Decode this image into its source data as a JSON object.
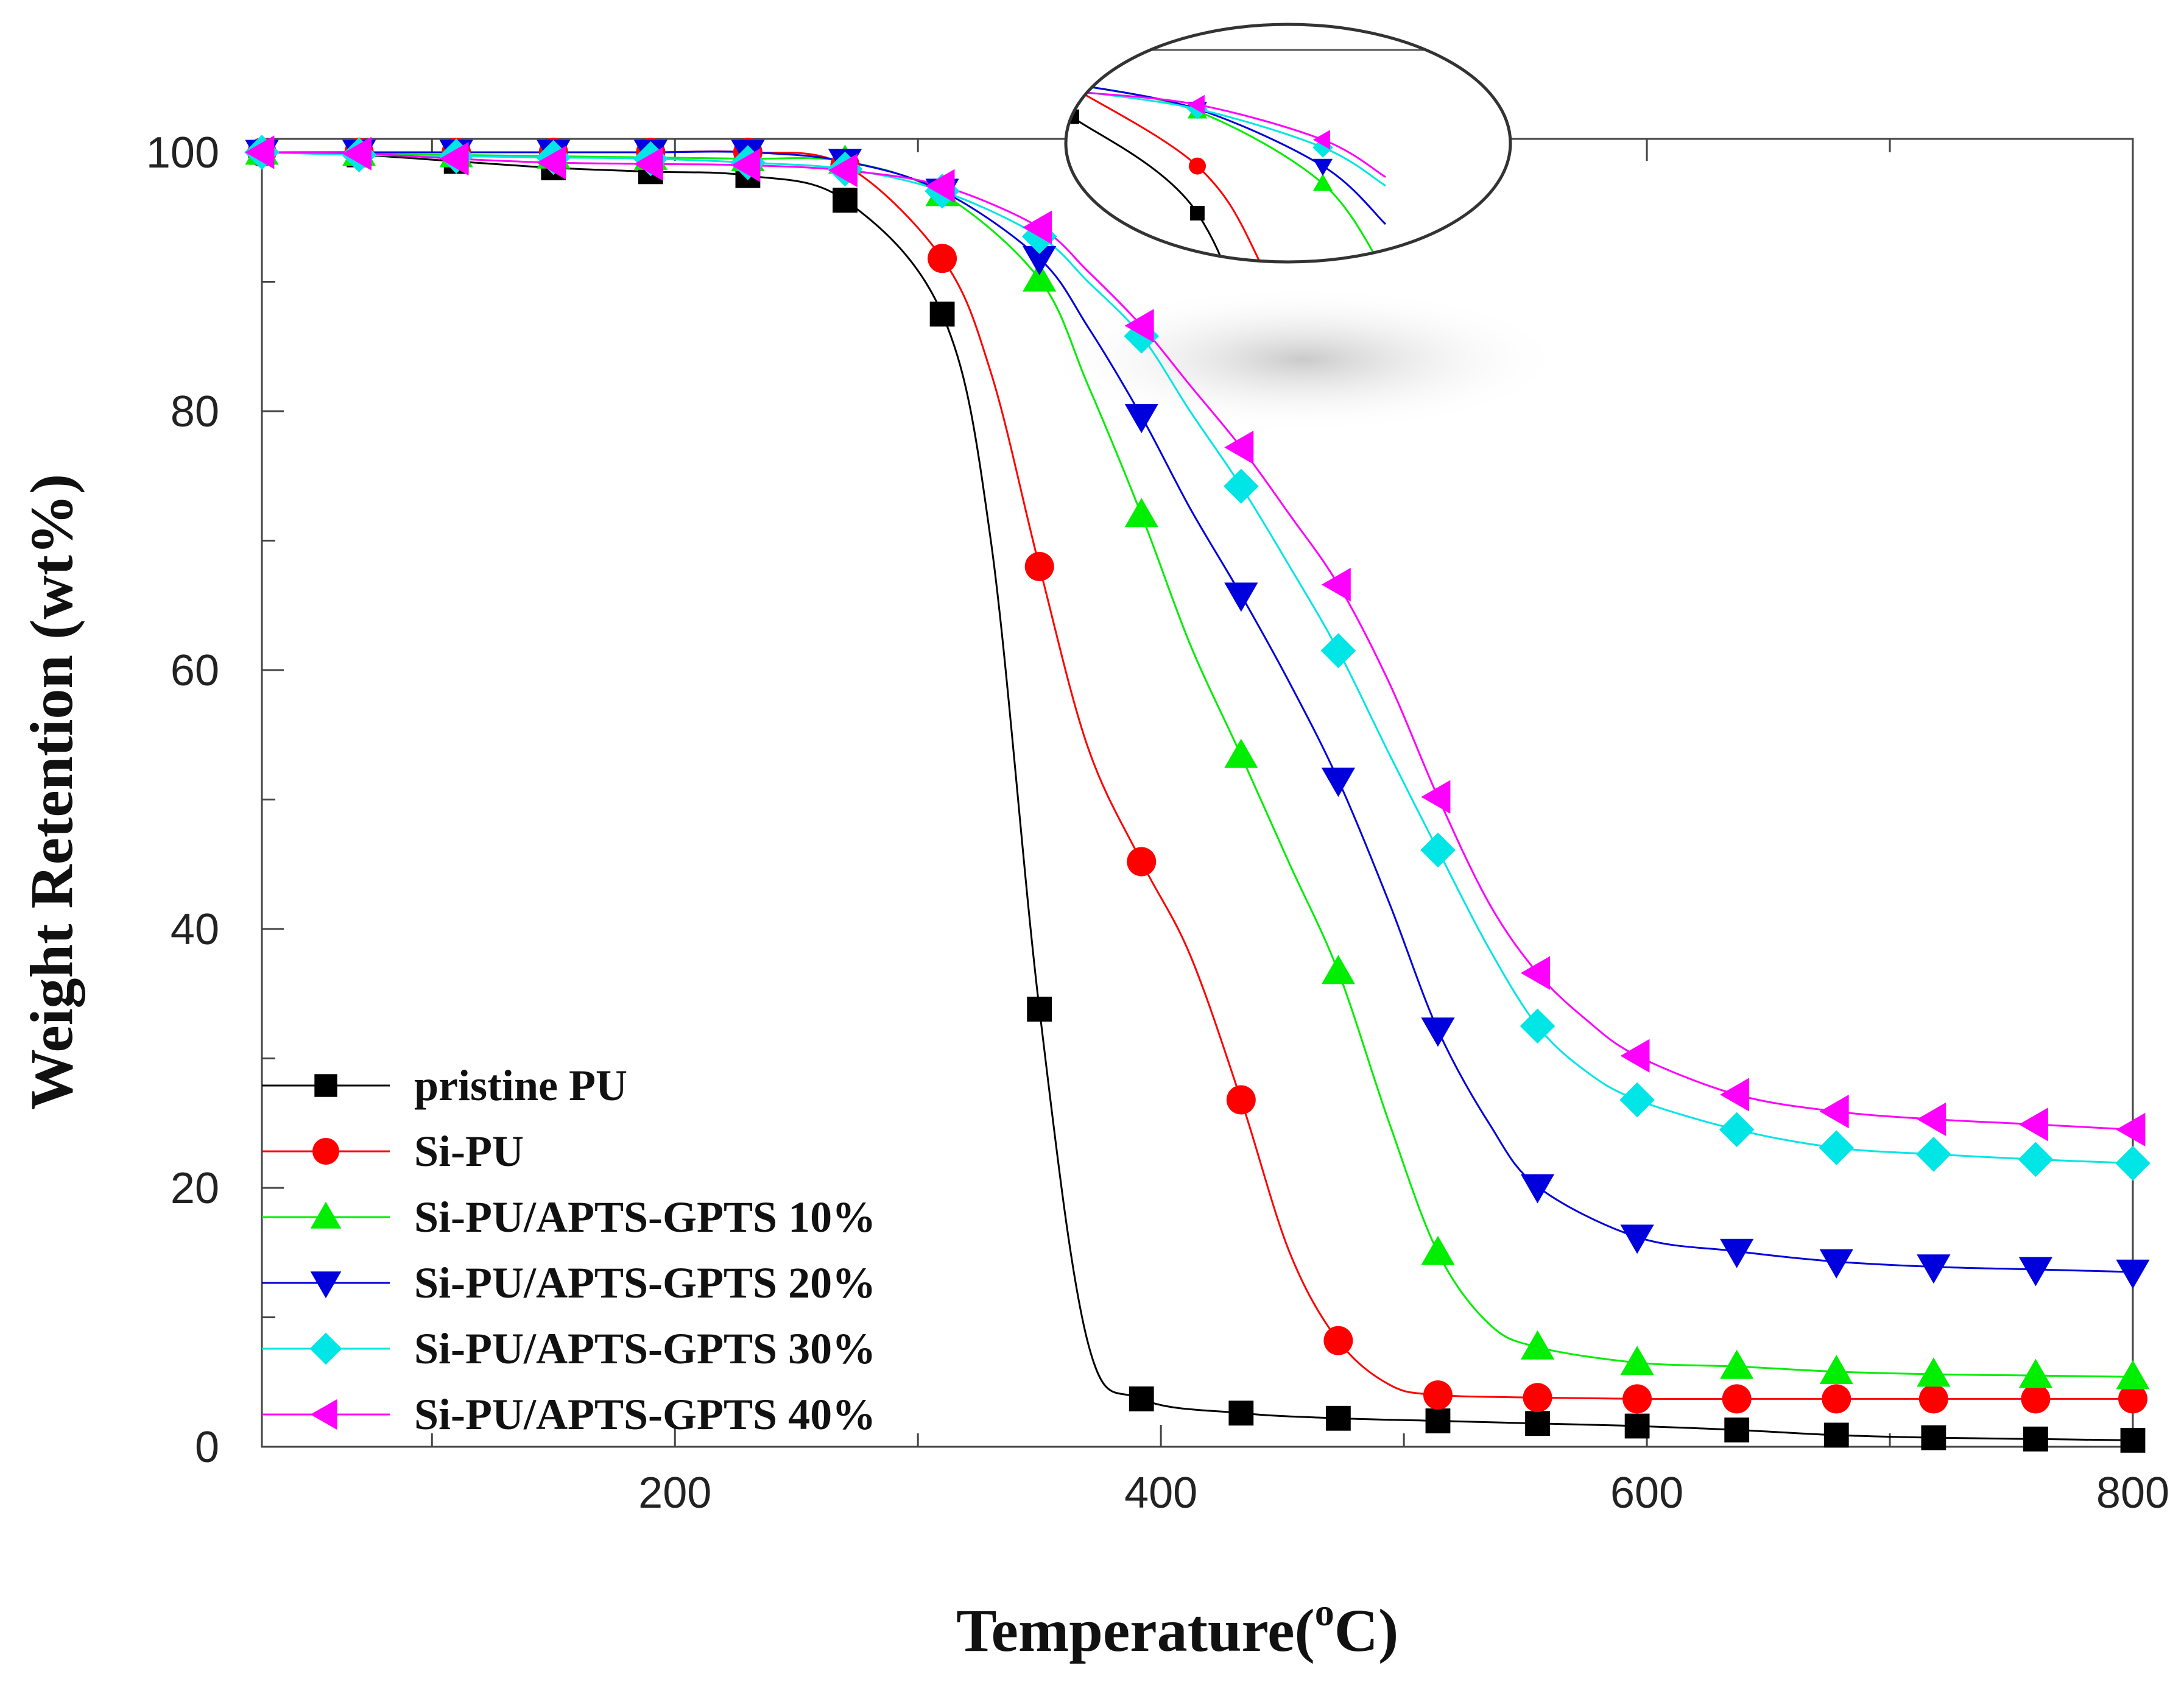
{
  "chart_data": {
    "type": "line",
    "title": "",
    "xlabel": "Temperature(°C)",
    "xlabel_main": "Temperature(",
    "xlabel_sup": "o",
    "xlabel_end": "C)",
    "ylabel": "Weight Retention (wt%)",
    "xlim": [
      30,
      800
    ],
    "ylim": [
      0,
      100
    ],
    "x_ticks": [
      200,
      400,
      600,
      800
    ],
    "x_tick_labels": [
      "200",
      "400",
      "600",
      "800"
    ],
    "y_ticks": [
      0,
      20,
      40,
      60,
      80,
      100
    ],
    "y_tick_labels": [
      "0",
      "20",
      "40",
      "60",
      "80",
      "100"
    ],
    "legend_position": "bottom-left",
    "series": [
      {
        "name": "pristine PU",
        "color": "#000000",
        "marker": "square",
        "x": [
          30,
          70,
          110,
          150,
          190,
          230,
          270,
          310,
          330,
          350,
          370,
          392,
          433,
          473,
          514,
          555,
          596,
          637,
          678,
          718,
          760,
          800
        ],
        "values": [
          100,
          99.8,
          99.3,
          98.8,
          98.5,
          98.2,
          96.3,
          87.5,
          70,
          33.8,
          8,
          3.7,
          2.6,
          2.2,
          2.0,
          1.8,
          1.6,
          1.3,
          0.9,
          0.7,
          0.6,
          0.5
        ],
        "marker_x": [
          30,
          70,
          110,
          150,
          190,
          230,
          270,
          310,
          350,
          392,
          433,
          473,
          514,
          555,
          596,
          637,
          678,
          718,
          760,
          800
        ],
        "marker_values": [
          100,
          99.8,
          99.3,
          98.8,
          98.5,
          98.2,
          96.3,
          87.5,
          33.8,
          3.7,
          2.6,
          2.2,
          2.0,
          1.8,
          1.6,
          1.3,
          0.9,
          0.7,
          0.6,
          0.5
        ]
      },
      {
        "name": "Si-PU",
        "color": "#ff0000",
        "marker": "circle",
        "x": [
          30,
          70,
          110,
          150,
          190,
          230,
          270,
          310,
          330,
          350,
          370,
          392,
          412,
          433,
          453,
          473,
          494,
          514,
          555,
          596,
          637,
          678,
          718,
          760,
          800
        ],
        "values": [
          100,
          100,
          100,
          100,
          100,
          100,
          99.0,
          91.8,
          83,
          68,
          54,
          45.2,
          38,
          26.8,
          15,
          8.2,
          4.8,
          4.0,
          3.8,
          3.7,
          3.7,
          3.7,
          3.7,
          3.7,
          3.7
        ],
        "marker_x": [
          30,
          70,
          110,
          150,
          190,
          230,
          270,
          310,
          350,
          392,
          433,
          473,
          514,
          555,
          596,
          637,
          678,
          718,
          760,
          800
        ],
        "marker_values": [
          100,
          100,
          100,
          100,
          100,
          100,
          99.0,
          91.8,
          68,
          45.2,
          26.8,
          8.2,
          4.0,
          3.8,
          3.7,
          3.7,
          3.7,
          3.7,
          3.7,
          3.7
        ]
      },
      {
        "name": "Si-PU/APTS-GPTS 10%",
        "color": "#00ee00",
        "marker": "triangle-up",
        "x": [
          30,
          70,
          110,
          150,
          190,
          230,
          270,
          310,
          350,
          370,
          392,
          412,
          433,
          453,
          473,
          494,
          514,
          535,
          555,
          596,
          637,
          678,
          718,
          760,
          800
        ],
        "values": [
          100,
          99.9,
          99.8,
          99.7,
          99.6,
          99.5,
          99.3,
          96.8,
          90.2,
          82,
          72,
          62,
          53.4,
          45,
          36.7,
          25,
          15,
          9.5,
          7.7,
          6.5,
          6.2,
          5.8,
          5.6,
          5.5,
          5.4
        ],
        "marker_x": [
          30,
          70,
          110,
          150,
          190,
          230,
          270,
          310,
          350,
          392,
          433,
          473,
          514,
          555,
          596,
          637,
          678,
          718,
          760,
          800
        ],
        "marker_values": [
          100,
          99.9,
          99.8,
          99.7,
          99.6,
          99.5,
          99.3,
          96.8,
          90.2,
          72,
          53.4,
          36.7,
          15,
          7.7,
          6.5,
          6.2,
          5.8,
          5.6,
          5.5,
          5.4
        ]
      },
      {
        "name": "Si-PU/APTS-GPTS 20%",
        "color": "#0000dd",
        "marker": "triangle-down",
        "x": [
          30,
          70,
          110,
          150,
          190,
          230,
          270,
          310,
          350,
          370,
          392,
          412,
          433,
          453,
          473,
          494,
          514,
          535,
          555,
          596,
          637,
          678,
          718,
          760,
          800
        ],
        "values": [
          100,
          100,
          100,
          100,
          100,
          100,
          99.3,
          97.0,
          91.8,
          86.5,
          79.6,
          72.5,
          65.8,
          59,
          51.5,
          42,
          32.2,
          25,
          20.1,
          16.2,
          15.1,
          14.3,
          13.9,
          13.7,
          13.5
        ],
        "marker_x": [
          30,
          70,
          110,
          150,
          190,
          230,
          270,
          310,
          350,
          392,
          433,
          473,
          514,
          555,
          596,
          637,
          678,
          718,
          760,
          800
        ],
        "marker_values": [
          100,
          100,
          100,
          100,
          100,
          100,
          99.3,
          97.0,
          91.8,
          79.6,
          65.8,
          51.5,
          32.2,
          20.1,
          16.2,
          15.1,
          14.3,
          13.9,
          13.7,
          13.5
        ]
      },
      {
        "name": "Si-PU/APTS-GPTS 30%",
        "color": "#00e5e5",
        "marker": "diamond",
        "x": [
          30,
          70,
          110,
          150,
          190,
          230,
          270,
          310,
          350,
          370,
          392,
          412,
          433,
          453,
          473,
          494,
          514,
          535,
          555,
          575,
          596,
          637,
          678,
          718,
          760,
          800
        ],
        "values": [
          100,
          99.8,
          99.7,
          99.6,
          99.5,
          99.2,
          98.7,
          97.0,
          93.5,
          90,
          85.8,
          80,
          74.2,
          68,
          61.5,
          53.5,
          46.1,
          38.5,
          32.5,
          29,
          26.8,
          24.5,
          23.1,
          22.6,
          22.2,
          21.9
        ],
        "marker_x": [
          30,
          70,
          110,
          150,
          190,
          230,
          270,
          310,
          350,
          392,
          433,
          473,
          514,
          555,
          596,
          637,
          678,
          718,
          760,
          800
        ],
        "marker_values": [
          100,
          99.8,
          99.7,
          99.6,
          99.5,
          99.2,
          98.7,
          97.0,
          93.5,
          85.8,
          74.2,
          61.5,
          46.1,
          32.5,
          26.8,
          24.5,
          23.1,
          22.6,
          22.2,
          21.9
        ]
      },
      {
        "name": "Si-PU/APTS-GPTS 40%",
        "color": "#ff00ff",
        "marker": "triangle-left",
        "x": [
          30,
          70,
          110,
          150,
          190,
          230,
          270,
          310,
          350,
          370,
          392,
          412,
          433,
          453,
          473,
          494,
          514,
          535,
          555,
          575,
          596,
          637,
          678,
          718,
          760,
          800
        ],
        "values": [
          100,
          99.9,
          99.5,
          99.2,
          99.1,
          99.0,
          98.6,
          97.4,
          94.2,
          90.8,
          86.6,
          82,
          77.2,
          72,
          66.6,
          59,
          50.2,
          42,
          36.6,
          33,
          30.2,
          27.2,
          25.9,
          25.3,
          24.9,
          24.5
        ],
        "marker_x": [
          30,
          70,
          110,
          150,
          190,
          230,
          270,
          310,
          350,
          392,
          433,
          473,
          514,
          555,
          596,
          637,
          678,
          718,
          760,
          800
        ],
        "marker_values": [
          100,
          99.9,
          99.5,
          99.2,
          99.1,
          99.0,
          98.6,
          97.4,
          94.2,
          86.6,
          77.2,
          66.6,
          50.2,
          36.6,
          30.2,
          27.2,
          25.9,
          25.3,
          24.9,
          24.5
        ]
      }
    ],
    "annotation": "ellipse highlighting the onset of degradation near 100 wt%"
  }
}
